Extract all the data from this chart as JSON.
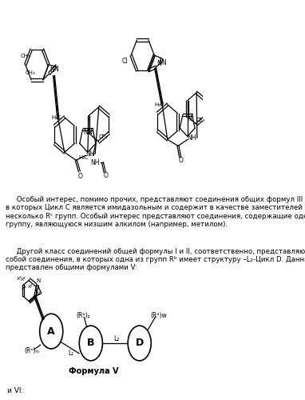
{
  "background_color": "#ffffff",
  "text1": "     Особый интерес, помимо прочих, представляют соединения общих формул III и IV,\nв которых Цикл C является имидазольным и содержит в качестве заместителей одну или\nнесколько Rᶜ групп. Особый интерес представляют соединения, содержащие одну Rᶜ\nгруппу, являющуюся низшим алкилом (например, метилом).",
  "text2": "     Другой класс соединений общей формулы I и II, соответственно, представляют\nсобой соединения, в которых одна из групп Rᵇ имеет структуру –L₂-Цикл D. Данный класс\nпредставлен общими формулами V:",
  "text3": "и VI:",
  "formula_label": "Формула V"
}
